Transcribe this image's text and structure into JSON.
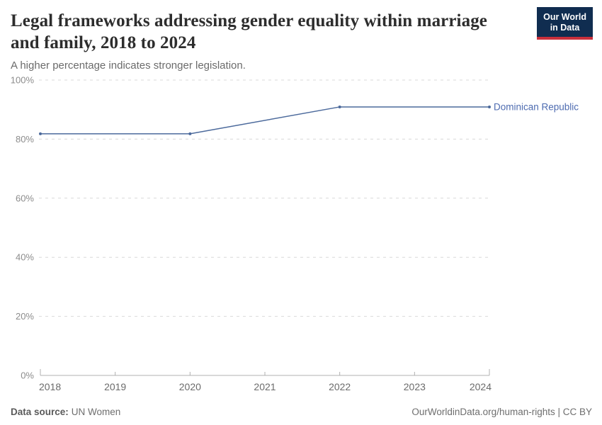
{
  "header": {
    "title": "Legal frameworks addressing gender equality within marriage and family, 2018 to 2024",
    "subtitle": "A higher percentage indicates stronger legislation.",
    "logo": {
      "line1": "Our World",
      "line2": "in Data"
    }
  },
  "chart_data": {
    "type": "line",
    "title": "Legal frameworks addressing gender equality within marriage and family, 2018 to 2024",
    "subtitle": "A higher percentage indicates stronger legislation.",
    "x": [
      2018,
      2020,
      2022,
      2024
    ],
    "series": [
      {
        "name": "Dominican Republic",
        "values": [
          81.8,
          81.8,
          90.9,
          90.9
        ],
        "color": "#4c6a9c"
      }
    ],
    "xlabel": "",
    "ylabel": "",
    "xlim": [
      2018,
      2024
    ],
    "ylim": [
      0,
      100
    ],
    "x_ticks": [
      2018,
      2019,
      2020,
      2021,
      2022,
      2023,
      2024
    ],
    "y_ticks": [
      0,
      20,
      40,
      60,
      80,
      100
    ],
    "y_tick_suffix": "%",
    "grid": "horizontal-dashed",
    "legend_position": "line-end-label"
  },
  "colors": {
    "line": "#4c6a9c",
    "series_label": "#4d6bb0",
    "grid": "#d9d9d9",
    "axis": "#b0b0b0",
    "y_tick_label": "#8c8c8c",
    "x_tick_label": "#6b6b6b",
    "title": "#2d2d2d",
    "subtitle": "#6b6b6b",
    "logo_bg": "#102d50",
    "logo_bar": "#c9303c",
    "footer": "#6e6e6e",
    "footer_label": "#5a5a5a"
  },
  "footer": {
    "source_label": "Data source:",
    "source_value": "UN Women",
    "link": "OurWorldinData.org/human-rights | CC BY"
  }
}
